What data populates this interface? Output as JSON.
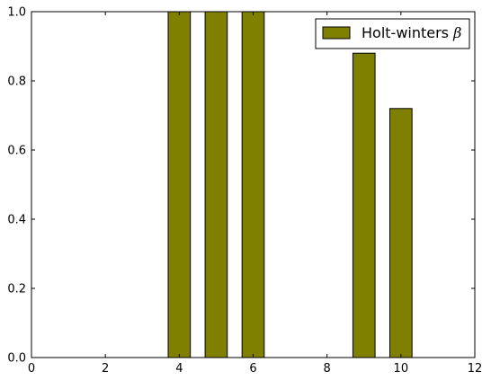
{
  "chart_data": {
    "type": "bar",
    "x": [
      4,
      5,
      6,
      9,
      10
    ],
    "series": [
      {
        "name": "Holt-winters β",
        "values": [
          1.0,
          1.0,
          1.0,
          0.88,
          0.72
        ],
        "color": "#808000"
      }
    ],
    "bar_width": 0.6,
    "xlim": [
      0,
      12
    ],
    "ylim": [
      0,
      1.0
    ],
    "x_ticks": [
      0,
      2,
      4,
      6,
      8,
      10,
      12
    ],
    "y_ticks": [
      0.0,
      0.2,
      0.4,
      0.6,
      0.8,
      1.0
    ],
    "x_tick_labels": [
      "0",
      "2",
      "4",
      "6",
      "8",
      "10",
      "12"
    ],
    "y_tick_labels": [
      "0.0",
      "0.2",
      "0.4",
      "0.6",
      "0.8",
      "1.0"
    ],
    "legend": {
      "placement": "top-right",
      "label_text": "Holt-winters ",
      "label_symbol": "β"
    },
    "grid": false
  }
}
